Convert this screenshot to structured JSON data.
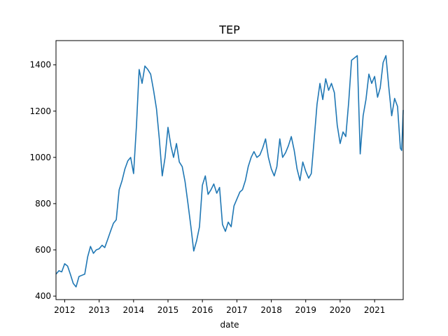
{
  "chart_data": {
    "type": "line",
    "title": "TEP",
    "xlabel": "date",
    "ylabel": "",
    "xlim": [
      "2011-10-01",
      "2021-10-31"
    ],
    "ylim": [
      385,
      1505
    ],
    "x_ticks": [
      {
        "label": "2012",
        "date": "2012-01-01"
      },
      {
        "label": "2013",
        "date": "2013-01-01"
      },
      {
        "label": "2014",
        "date": "2014-01-01"
      },
      {
        "label": "2015",
        "date": "2015-01-01"
      },
      {
        "label": "2016",
        "date": "2016-01-01"
      },
      {
        "label": "2017",
        "date": "2017-01-01"
      },
      {
        "label": "2018",
        "date": "2018-01-01"
      },
      {
        "label": "2019",
        "date": "2019-01-01"
      },
      {
        "label": "2020",
        "date": "2020-01-01"
      },
      {
        "label": "2021",
        "date": "2021-01-01"
      }
    ],
    "y_ticks": [
      400,
      600,
      800,
      1000,
      1200,
      1400
    ],
    "grid": false,
    "legend": "none",
    "series": [
      {
        "color": "#1f77b4",
        "points": [
          [
            "2011-10-01",
            495
          ],
          [
            "2011-11-01",
            510
          ],
          [
            "2011-12-01",
            505
          ],
          [
            "2012-01-01",
            540
          ],
          [
            "2012-02-01",
            530
          ],
          [
            "2012-03-01",
            495
          ],
          [
            "2012-04-01",
            455
          ],
          [
            "2012-05-01",
            440
          ],
          [
            "2012-06-01",
            485
          ],
          [
            "2012-07-01",
            490
          ],
          [
            "2012-08-01",
            495
          ],
          [
            "2012-09-01",
            570
          ],
          [
            "2012-10-01",
            615
          ],
          [
            "2012-11-01",
            585
          ],
          [
            "2012-12-01",
            600
          ],
          [
            "2013-01-01",
            605
          ],
          [
            "2013-02-01",
            620
          ],
          [
            "2013-03-01",
            610
          ],
          [
            "2013-04-01",
            645
          ],
          [
            "2013-05-01",
            680
          ],
          [
            "2013-06-01",
            715
          ],
          [
            "2013-07-01",
            730
          ],
          [
            "2013-08-01",
            860
          ],
          [
            "2013-09-01",
            900
          ],
          [
            "2013-10-01",
            950
          ],
          [
            "2013-11-01",
            985
          ],
          [
            "2013-12-01",
            1000
          ],
          [
            "2014-01-01",
            930
          ],
          [
            "2014-02-01",
            1140
          ],
          [
            "2014-03-01",
            1380
          ],
          [
            "2014-04-01",
            1320
          ],
          [
            "2014-05-01",
            1395
          ],
          [
            "2014-06-01",
            1380
          ],
          [
            "2014-07-01",
            1360
          ],
          [
            "2014-08-01",
            1290
          ],
          [
            "2014-09-01",
            1210
          ],
          [
            "2014-10-01",
            1080
          ],
          [
            "2014-11-01",
            920
          ],
          [
            "2014-12-01",
            1000
          ],
          [
            "2015-01-01",
            1130
          ],
          [
            "2015-02-01",
            1050
          ],
          [
            "2015-03-01",
            1000
          ],
          [
            "2015-04-01",
            1060
          ],
          [
            "2015-05-01",
            980
          ],
          [
            "2015-06-01",
            960
          ],
          [
            "2015-07-01",
            895
          ],
          [
            "2015-08-01",
            800
          ],
          [
            "2015-09-01",
            700
          ],
          [
            "2015-10-01",
            595
          ],
          [
            "2015-11-01",
            640
          ],
          [
            "2015-12-01",
            700
          ],
          [
            "2016-01-01",
            880
          ],
          [
            "2016-02-01",
            920
          ],
          [
            "2016-03-01",
            840
          ],
          [
            "2016-04-01",
            860
          ],
          [
            "2016-05-01",
            885
          ],
          [
            "2016-06-01",
            845
          ],
          [
            "2016-07-01",
            870
          ],
          [
            "2016-08-01",
            710
          ],
          [
            "2016-09-01",
            680
          ],
          [
            "2016-10-01",
            720
          ],
          [
            "2016-11-01",
            700
          ],
          [
            "2016-12-01",
            790
          ],
          [
            "2017-01-01",
            820
          ],
          [
            "2017-02-01",
            850
          ],
          [
            "2017-03-01",
            860
          ],
          [
            "2017-04-01",
            900
          ],
          [
            "2017-05-01",
            960
          ],
          [
            "2017-06-01",
            1000
          ],
          [
            "2017-07-01",
            1025
          ],
          [
            "2017-08-01",
            1000
          ],
          [
            "2017-09-01",
            1010
          ],
          [
            "2017-10-01",
            1040
          ],
          [
            "2017-11-01",
            1080
          ],
          [
            "2017-12-01",
            1000
          ],
          [
            "2018-01-01",
            950
          ],
          [
            "2018-02-01",
            920
          ],
          [
            "2018-03-01",
            960
          ],
          [
            "2018-04-01",
            1080
          ],
          [
            "2018-05-01",
            1000
          ],
          [
            "2018-06-01",
            1020
          ],
          [
            "2018-07-01",
            1050
          ],
          [
            "2018-08-01",
            1090
          ],
          [
            "2018-09-01",
            1030
          ],
          [
            "2018-10-01",
            950
          ],
          [
            "2018-11-01",
            900
          ],
          [
            "2018-12-01",
            980
          ],
          [
            "2019-01-01",
            940
          ],
          [
            "2019-02-01",
            910
          ],
          [
            "2019-03-01",
            930
          ],
          [
            "2019-04-01",
            1080
          ],
          [
            "2019-05-01",
            1230
          ],
          [
            "2019-06-01",
            1320
          ],
          [
            "2019-07-01",
            1250
          ],
          [
            "2019-08-01",
            1340
          ],
          [
            "2019-09-01",
            1290
          ],
          [
            "2019-10-01",
            1320
          ],
          [
            "2019-11-01",
            1280
          ],
          [
            "2019-12-01",
            1140
          ],
          [
            "2020-01-01",
            1060
          ],
          [
            "2020-02-01",
            1110
          ],
          [
            "2020-03-01",
            1090
          ],
          [
            "2020-04-01",
            1240
          ],
          [
            "2020-05-01",
            1420
          ],
          [
            "2020-06-01",
            1430
          ],
          [
            "2020-07-01",
            1440
          ],
          [
            "2020-08-01",
            1015
          ],
          [
            "2020-09-01",
            1180
          ],
          [
            "2020-10-01",
            1250
          ],
          [
            "2020-11-01",
            1360
          ],
          [
            "2020-12-01",
            1320
          ],
          [
            "2021-01-01",
            1350
          ],
          [
            "2021-02-01",
            1260
          ],
          [
            "2021-03-01",
            1300
          ],
          [
            "2021-04-01",
            1410
          ],
          [
            "2021-05-01",
            1440
          ],
          [
            "2021-06-01",
            1300
          ],
          [
            "2021-07-01",
            1180
          ],
          [
            "2021-08-01",
            1255
          ],
          [
            "2021-09-01",
            1220
          ],
          [
            "2021-10-01",
            1040
          ],
          [
            "2021-10-15",
            1030
          ],
          [
            "2021-10-31",
            1205
          ]
        ]
      }
    ]
  }
}
